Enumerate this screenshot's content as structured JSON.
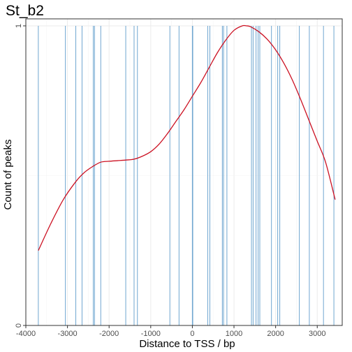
{
  "chart_data": {
    "type": "line",
    "title": "St_b2",
    "xlabel": "Distance to TSS / bp",
    "ylabel": "Count of peaks",
    "xlim": [
      -4000,
      3600
    ],
    "ylim": [
      0,
      1
    ],
    "x_ticks": [
      -4000,
      -3000,
      -2000,
      -1000,
      0,
      1000,
      2000,
      3000
    ],
    "y_ticks": [
      0,
      1
    ],
    "grid": true,
    "colors": {
      "peaks": "#6fa6d0",
      "density": "#cc1122",
      "grid": "#ebebeb",
      "frame": "#333333"
    },
    "peak_positions": [
      -3700,
      -3050,
      -2800,
      -2650,
      -2380,
      -2350,
      -2200,
      -1600,
      -1400,
      -1320,
      -540,
      -320,
      0,
      10,
      370,
      420,
      720,
      750,
      830,
      1420,
      1460,
      1530,
      1580,
      1620,
      1900,
      2050,
      2100,
      2570,
      2810,
      3150,
      3400
    ],
    "series": [
      {
        "x": [
          -3700,
          -3400,
          -3100,
          -2800,
          -2600,
          -2400,
          -2200,
          -2000,
          -1800,
          -1600,
          -1400,
          -1200,
          -1000,
          -800,
          -600,
          -400,
          -200,
          0,
          200,
          400,
          600,
          800,
          1000,
          1200,
          1300,
          1400,
          1600,
          1800,
          2000,
          2200,
          2400,
          2600,
          2800,
          3000,
          3200,
          3430
        ],
        "y": [
          0.25,
          0.34,
          0.42,
          0.48,
          0.51,
          0.53,
          0.545,
          0.548,
          0.55,
          0.552,
          0.555,
          0.565,
          0.58,
          0.605,
          0.64,
          0.68,
          0.72,
          0.765,
          0.81,
          0.86,
          0.91,
          0.952,
          0.985,
          1.0,
          1.0,
          0.997,
          0.98,
          0.955,
          0.92,
          0.875,
          0.82,
          0.755,
          0.685,
          0.615,
          0.545,
          0.42
        ]
      }
    ]
  }
}
